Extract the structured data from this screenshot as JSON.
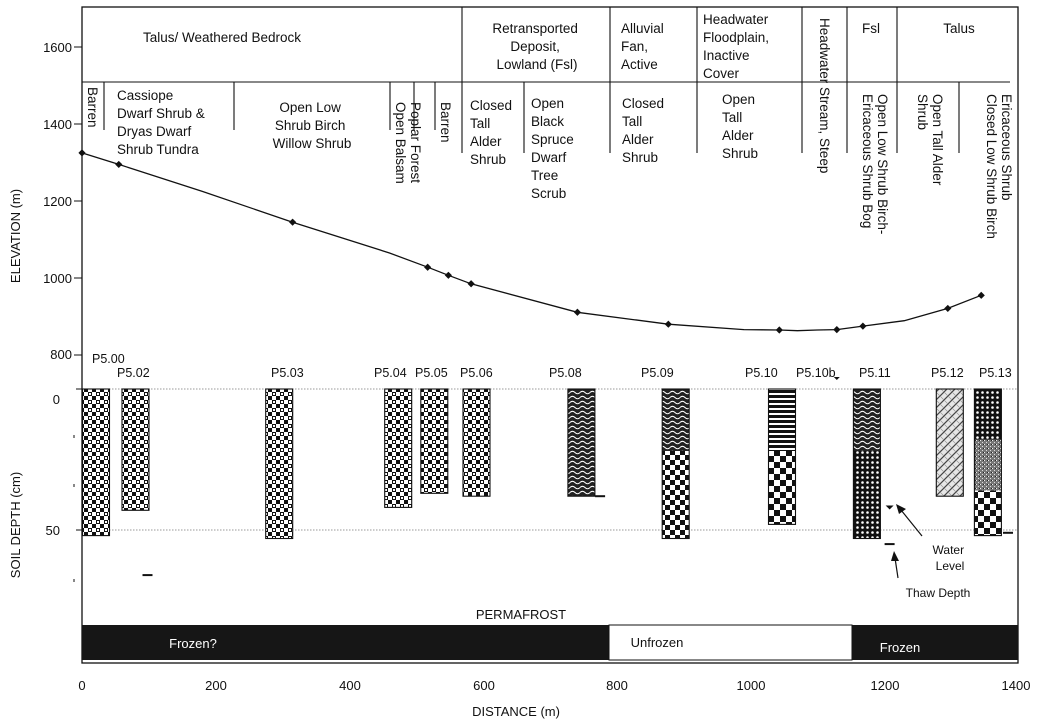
{
  "axes": {
    "x_label": "DISTANCE (m)",
    "y_label_top": "ELEVATION (m)",
    "y_label_bottom": "SOIL DEPTH  (cm)",
    "x_ticks": [
      "0",
      "200",
      "400",
      "600",
      "800",
      "1000",
      "1200",
      "1400"
    ],
    "elev_ticks": [
      "800",
      "1000",
      "1200",
      "1400",
      "1600"
    ],
    "depth_ticks": [
      "0",
      "50"
    ]
  },
  "landform_segments": [
    {
      "lines": [
        "Talus/ Weathered Bedrock"
      ]
    },
    {
      "lines": [
        "Retransported",
        "Deposit,",
        "Lowland (Fsl)"
      ]
    },
    {
      "lines": [
        "Alluvial",
        "Fan,",
        "Active"
      ]
    },
    {
      "lines": [
        "Headwater",
        "Floodplain,",
        "Inactive",
        "Cover"
      ]
    },
    {
      "lines": [
        "Headwater Stream, Steep"
      ]
    },
    {
      "lines": [
        "Fsl"
      ]
    },
    {
      "lines": [
        "Talus"
      ]
    }
  ],
  "vegetation": [
    {
      "lines": [
        "Barren"
      ]
    },
    {
      "lines": [
        "Cassiope",
        "Dwarf Shrub &",
        "Dryas Dwarf",
        "Shrub Tundra"
      ]
    },
    {
      "lines": [
        "Open Low",
        "Shrub Birch",
        "Willow Shrub"
      ]
    },
    {
      "lines": [
        "Open Balsam",
        "Poplar Forest"
      ]
    },
    {
      "lines": [
        "Barren"
      ]
    },
    {
      "lines": [
        "Closed",
        "Tall",
        "Alder",
        "Shrub"
      ]
    },
    {
      "lines": [
        "Open",
        "Black",
        "Spruce",
        "Dwarf",
        "Tree",
        "Scrub"
      ]
    },
    {
      "lines": [
        "Closed",
        "Tall",
        "Alder",
        "Shrub"
      ]
    },
    {
      "lines": [
        "Open",
        "Tall",
        "Alder",
        "Shrub"
      ]
    },
    {
      "lines": [
        "Open Low Shrub Birch-",
        "Ericaceous Shrub Bog"
      ]
    },
    {
      "lines": [
        "Open Tall Alder",
        "Shrub"
      ]
    },
    {
      "lines": [
        "Closed Low Shrub Birch",
        "Ericaceous Shrub"
      ]
    }
  ],
  "plots": [
    "P5.00",
    "P5.02",
    "P5.03",
    "P5.04",
    "P5.05",
    "P5.06",
    "P5.08",
    "P5.09",
    "P5.10",
    "P5.10b",
    "P5.11",
    "P5.12",
    "P5.13"
  ],
  "annotations": {
    "water_level": [
      "Water",
      "Level"
    ],
    "thaw_depth": "Thaw Depth",
    "permafrost": "PERMAFROST"
  },
  "permafrost_zones": [
    {
      "label": "Frozen?",
      "from_m": 0,
      "to_m": 785,
      "state": "frozen"
    },
    {
      "label": "Unfrozen",
      "from_m": 785,
      "to_m": 1155,
      "state": "unfrozen"
    },
    {
      "label": "Frozen",
      "from_m": 1155,
      "to_m": 1400,
      "state": "frozen"
    }
  ],
  "colors": {
    "ink": "#111111",
    "frozen": "#161616",
    "unfrozen": "#ffffff"
  },
  "chart_data": {
    "type": "line",
    "x_unit": "m",
    "elevation_profile": {
      "xlim": [
        0,
        1400
      ],
      "ylim": [
        740,
        1740
      ],
      "points": [
        {
          "x": 0,
          "y": 1325
        },
        {
          "x": 55,
          "y": 1295
        },
        {
          "x": 315,
          "y": 1145
        },
        {
          "x": 517,
          "y": 1028
        },
        {
          "x": 548,
          "y": 1007
        },
        {
          "x": 582,
          "y": 985
        },
        {
          "x": 741,
          "y": 911
        },
        {
          "x": 877,
          "y": 880
        },
        {
          "x": 1043,
          "y": 865
        },
        {
          "x": 1129,
          "y": 866
        },
        {
          "x": 1168,
          "y": 875
        },
        {
          "x": 1295,
          "y": 921
        },
        {
          "x": 1345,
          "y": 955
        }
      ],
      "line_points": [
        {
          "x": 0,
          "y": 1325
        },
        {
          "x": 55,
          "y": 1295
        },
        {
          "x": 180,
          "y": 1225
        },
        {
          "x": 315,
          "y": 1145
        },
        {
          "x": 460,
          "y": 1065
        },
        {
          "x": 517,
          "y": 1028
        },
        {
          "x": 548,
          "y": 1007
        },
        {
          "x": 582,
          "y": 985
        },
        {
          "x": 741,
          "y": 911
        },
        {
          "x": 877,
          "y": 880
        },
        {
          "x": 990,
          "y": 866
        },
        {
          "x": 1043,
          "y": 865
        },
        {
          "x": 1070,
          "y": 863
        },
        {
          "x": 1100,
          "y": 865
        },
        {
          "x": 1129,
          "y": 866
        },
        {
          "x": 1168,
          "y": 875
        },
        {
          "x": 1230,
          "y": 889
        },
        {
          "x": 1295,
          "y": 921
        },
        {
          "x": 1345,
          "y": 955
        }
      ]
    },
    "soil_profiles": {
      "depth_unit": "cm",
      "columns": [
        {
          "plot": "P5.00",
          "x": 21,
          "bottom_cm": 52,
          "layers": [
            {
              "to": 52,
              "p": "checkA"
            }
          ]
        },
        {
          "plot": "P5.02",
          "x": 80,
          "bottom_cm": 43,
          "layers": [
            {
              "to": 43,
              "p": "checkA"
            }
          ]
        },
        {
          "plot": "P5.03",
          "x": 295,
          "bottom_cm": 53,
          "layers": [
            {
              "to": 53,
              "p": "checkA"
            }
          ]
        },
        {
          "plot": "P5.04",
          "x": 473,
          "bottom_cm": 42,
          "layers": [
            {
              "to": 42,
              "p": "checkA"
            }
          ]
        },
        {
          "plot": "P5.05",
          "x": 527,
          "bottom_cm": 37,
          "layers": [
            {
              "to": 37,
              "p": "checkA"
            }
          ]
        },
        {
          "plot": "P5.06",
          "x": 590,
          "bottom_cm": 38,
          "layers": [
            {
              "to": 38,
              "p": "checkA"
            }
          ]
        },
        {
          "plot": "P5.08",
          "x": 747,
          "bottom_cm": 38,
          "layers": [
            {
              "to": 38,
              "p": "wave"
            }
          ]
        },
        {
          "plot": "P5.09",
          "x": 888,
          "bottom_cm": 53,
          "layers": [
            {
              "to": 22,
              "p": "wave"
            },
            {
              "to": 53,
              "p": "checkB"
            }
          ]
        },
        {
          "plot": "P5.10",
          "x": 1047,
          "bottom_cm": 48,
          "layers": [
            {
              "to": 22,
              "p": "hline"
            },
            {
              "to": 48,
              "p": "checkC"
            }
          ]
        },
        {
          "plot": "P5.11",
          "x": 1174,
          "bottom_cm": 53,
          "layers": [
            {
              "to": 22,
              "p": "wave"
            },
            {
              "to": 53,
              "p": "dots"
            }
          ]
        },
        {
          "plot": "P5.12",
          "x": 1298,
          "bottom_cm": 38,
          "layers": [
            {
              "to": 38,
              "p": "brick"
            }
          ]
        },
        {
          "plot": "P5.13",
          "x": 1355,
          "bottom_cm": 52,
          "layers": [
            {
              "to": 18,
              "p": "dots"
            },
            {
              "to": 36,
              "p": "grainy"
            },
            {
              "to": 52,
              "p": "checkC"
            }
          ]
        }
      ],
      "water_level_marks": [
        {
          "x": 1208,
          "cm": 42
        }
      ],
      "thaw_depth_marks": [
        {
          "x": 98,
          "cm": 66
        },
        {
          "x": 775,
          "cm": 38
        },
        {
          "x": 1208,
          "cm": 55
        },
        {
          "x": 1385,
          "cm": 51
        }
      ]
    }
  }
}
